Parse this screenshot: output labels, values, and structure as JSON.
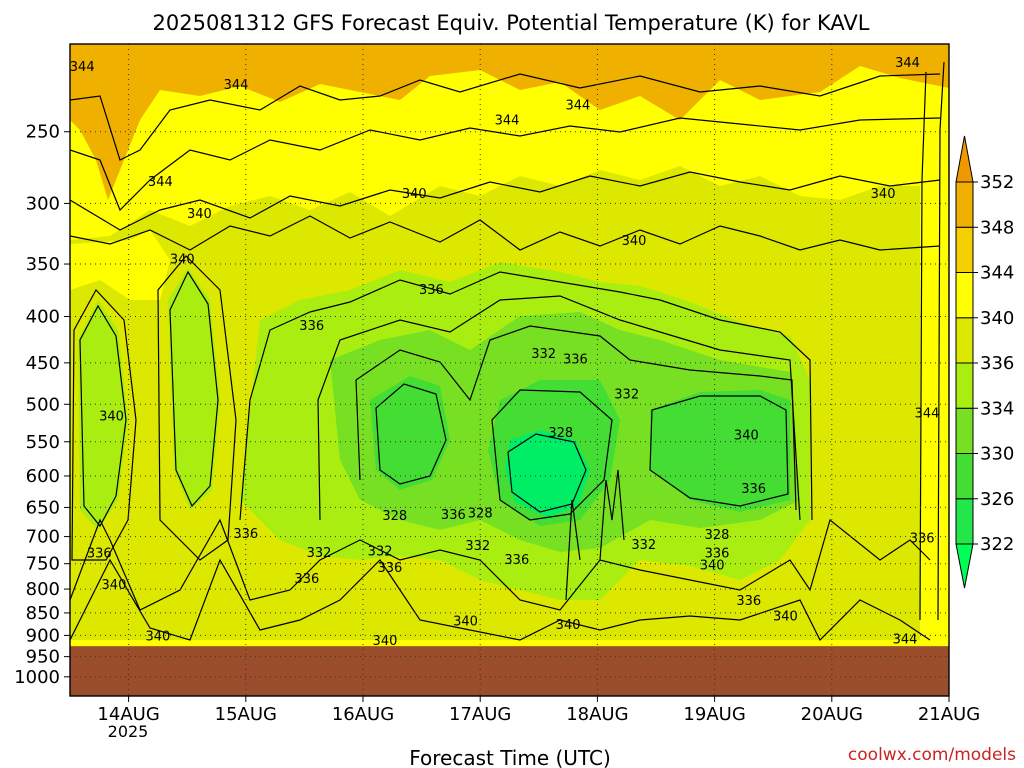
{
  "chart_data": {
    "type": "heatmap",
    "title": "2025081312 GFS Forecast Equiv. Potential Temperature (K) for KAVL",
    "xlabel": "Forecast Time (UTC)",
    "ylabel": "",
    "credit": "coolwx.com/models",
    "y_axis": {
      "scale": "log-pressure",
      "ticks": [
        250,
        300,
        350,
        400,
        450,
        500,
        550,
        600,
        650,
        700,
        750,
        800,
        850,
        900,
        950,
        1000
      ],
      "range": [
        200,
        1050
      ]
    },
    "x_axis": {
      "ticks": [
        "14AUG",
        "15AUG",
        "16AUG",
        "17AUG",
        "18AUG",
        "19AUG",
        "20AUG",
        "21AUG"
      ],
      "year_label": "2025",
      "range_hours_after_13AUG_00Z": [
        12,
        192
      ]
    },
    "ground_pressure": 925,
    "ground_color": "#9a4e2c",
    "colorbar": {
      "levels": [
        322,
        326,
        330,
        334,
        336,
        340,
        344,
        348,
        352
      ],
      "colors": [
        "#00ff55",
        "#22e64a",
        "#44dd33",
        "#77e022",
        "#aaee11",
        "#dde800",
        "#ffff00",
        "#f5d000",
        "#f0b000",
        "#ee9900"
      ]
    },
    "contour_labels": [
      {
        "text": "344",
        "t": 14.5,
        "p": 212
      },
      {
        "text": "344",
        "t": 46,
        "p": 222
      },
      {
        "text": "344",
        "t": 101.5,
        "p": 243
      },
      {
        "text": "344",
        "t": 116,
        "p": 234
      },
      {
        "text": "344",
        "t": 183.5,
        "p": 210
      },
      {
        "text": "344",
        "t": 30.5,
        "p": 284
      },
      {
        "text": "340",
        "t": 38.5,
        "p": 308
      },
      {
        "text": "340",
        "t": 82.5,
        "p": 293
      },
      {
        "text": "340",
        "t": 127.5,
        "p": 330
      },
      {
        "text": "340",
        "t": 178.5,
        "p": 293
      },
      {
        "text": "340",
        "t": 35,
        "p": 346
      },
      {
        "text": "336",
        "t": 86,
        "p": 374
      },
      {
        "text": "336",
        "t": 61.5,
        "p": 410
      },
      {
        "text": "332",
        "t": 109,
        "p": 440
      },
      {
        "text": "336",
        "t": 115.5,
        "p": 446
      },
      {
        "text": "332",
        "t": 126,
        "p": 488
      },
      {
        "text": "340",
        "t": 20.5,
        "p": 516
      },
      {
        "text": "328",
        "t": 112.5,
        "p": 538
      },
      {
        "text": "340",
        "t": 150.5,
        "p": 541
      },
      {
        "text": "344",
        "t": 187.5,
        "p": 512
      },
      {
        "text": "336",
        "t": 152,
        "p": 620
      },
      {
        "text": "328",
        "t": 78.5,
        "p": 664
      },
      {
        "text": "336",
        "t": 90.5,
        "p": 663
      },
      {
        "text": "328",
        "t": 96,
        "p": 660
      },
      {
        "text": "336",
        "t": 48,
        "p": 695
      },
      {
        "text": "328",
        "t": 144.5,
        "p": 697
      },
      {
        "text": "336",
        "t": 18,
        "p": 731
      },
      {
        "text": "332",
        "t": 63,
        "p": 730
      },
      {
        "text": "332",
        "t": 75.5,
        "p": 727
      },
      {
        "text": "332",
        "t": 95.5,
        "p": 717
      },
      {
        "text": "332",
        "t": 129.5,
        "p": 715
      },
      {
        "text": "336",
        "t": 144.5,
        "p": 731
      },
      {
        "text": "340",
        "t": 143.5,
        "p": 753
      },
      {
        "text": "336",
        "t": 77.5,
        "p": 758
      },
      {
        "text": "336",
        "t": 103.5,
        "p": 743
      },
      {
        "text": "336",
        "t": 60.5,
        "p": 780
      },
      {
        "text": "340",
        "t": 21,
        "p": 792
      },
      {
        "text": "336",
        "t": 151,
        "p": 825
      },
      {
        "text": "340",
        "t": 158.5,
        "p": 858
      },
      {
        "text": "340",
        "t": 93,
        "p": 869
      },
      {
        "text": "340",
        "t": 114,
        "p": 877
      },
      {
        "text": "336",
        "t": 186.5,
        "p": 703
      },
      {
        "text": "340",
        "t": 30,
        "p": 903
      },
      {
        "text": "340",
        "t": 76.5,
        "p": 913
      },
      {
        "text": "344",
        "t": 183,
        "p": 910
      }
    ]
  }
}
